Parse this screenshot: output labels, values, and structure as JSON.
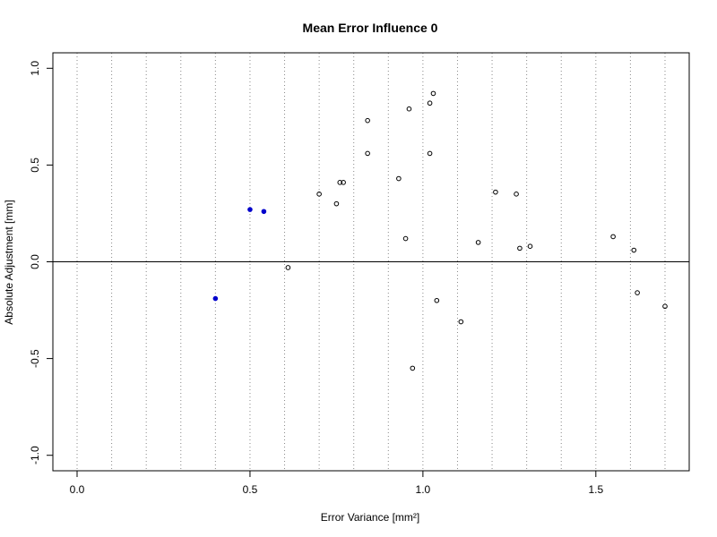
{
  "chart_data": {
    "type": "scatter",
    "title": "Mean Error Influence 0",
    "xlabel": "Error Variance [mm²]",
    "ylabel": "Absolute Adjustment [mm]",
    "xlim": [
      -0.07,
      1.77
    ],
    "ylim": [
      -1.08,
      1.08
    ],
    "x_ticks": [
      {
        "value": 0.0,
        "label": "0.0"
      },
      {
        "value": 0.5,
        "label": "0.5"
      },
      {
        "value": 1.0,
        "label": "1.0"
      },
      {
        "value": 1.5,
        "label": "1.5"
      }
    ],
    "y_ticks": [
      {
        "value": -1.0,
        "label": "-1.0"
      },
      {
        "value": -0.5,
        "label": "-0.5"
      },
      {
        "value": 0.0,
        "label": "0.0"
      },
      {
        "value": 0.5,
        "label": "0.5"
      },
      {
        "value": 1.0,
        "label": "1.0"
      }
    ],
    "vertical_grid": [
      0.0,
      0.1,
      0.2,
      0.3,
      0.4,
      0.5,
      0.6,
      0.7,
      0.8,
      0.9,
      1.0,
      1.1,
      1.2,
      1.3,
      1.4,
      1.5,
      1.6,
      1.7
    ],
    "grid_style": "dotted vertical",
    "reference_line_y": 0.0,
    "series": [
      {
        "style": "filled",
        "color": "#0000cc",
        "points": [
          {
            "x": 0.4,
            "y": -0.19
          },
          {
            "x": 0.5,
            "y": 0.27
          },
          {
            "x": 0.54,
            "y": 0.26
          }
        ]
      },
      {
        "style": "open",
        "color": "#000000",
        "points": [
          {
            "x": 0.61,
            "y": -0.03
          },
          {
            "x": 0.7,
            "y": 0.35
          },
          {
            "x": 0.75,
            "y": 0.3
          },
          {
            "x": 0.76,
            "y": 0.41
          },
          {
            "x": 0.77,
            "y": 0.41
          },
          {
            "x": 0.84,
            "y": 0.73
          },
          {
            "x": 0.84,
            "y": 0.56
          },
          {
            "x": 0.93,
            "y": 0.43
          },
          {
            "x": 0.95,
            "y": 0.12
          },
          {
            "x": 0.96,
            "y": 0.79
          },
          {
            "x": 0.97,
            "y": -0.55
          },
          {
            "x": 1.02,
            "y": 0.82
          },
          {
            "x": 1.02,
            "y": 0.56
          },
          {
            "x": 1.03,
            "y": 0.87
          },
          {
            "x": 1.04,
            "y": -0.2
          },
          {
            "x": 1.11,
            "y": -0.31
          },
          {
            "x": 1.16,
            "y": 0.1
          },
          {
            "x": 1.21,
            "y": 0.36
          },
          {
            "x": 1.27,
            "y": 0.35
          },
          {
            "x": 1.28,
            "y": 0.07
          },
          {
            "x": 1.31,
            "y": 0.08
          },
          {
            "x": 1.55,
            "y": 0.13
          },
          {
            "x": 1.61,
            "y": 0.06
          },
          {
            "x": 1.62,
            "y": -0.16
          },
          {
            "x": 1.7,
            "y": -0.23
          }
        ]
      }
    ]
  }
}
